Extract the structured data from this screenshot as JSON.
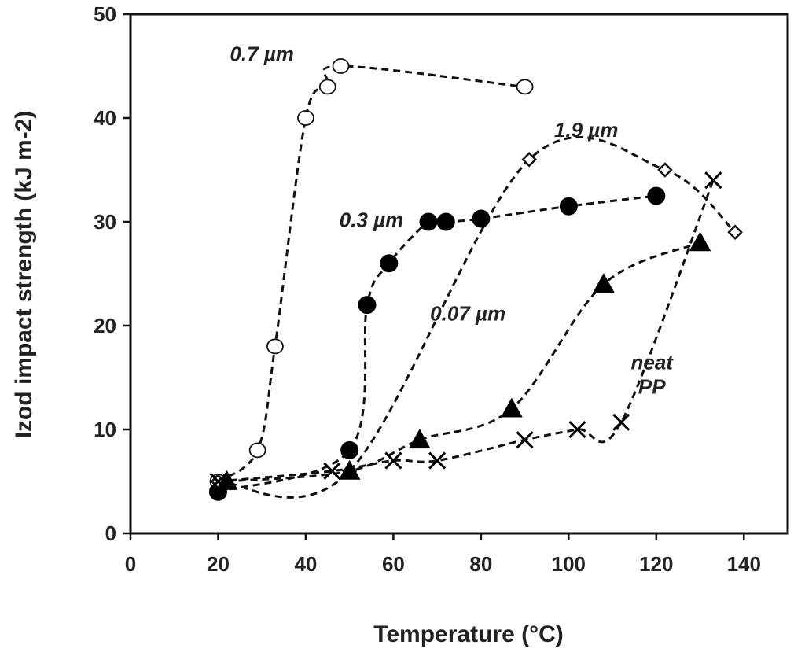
{
  "chart_data": {
    "type": "scatter",
    "title": "",
    "xlabel": "Temperature (°C)",
    "ylabel": "Izod impact strength (kJ m-2)",
    "xlim": [
      0,
      150
    ],
    "ylim": [
      0,
      50
    ],
    "xticks": [
      0,
      20,
      40,
      60,
      80,
      100,
      120,
      140
    ],
    "yticks": [
      0,
      10,
      20,
      30,
      40,
      50
    ],
    "grid": false,
    "series": [
      {
        "name": "0.7 µm",
        "marker": "open-circle",
        "label_pos": [
          30,
          45.5
        ],
        "points": [
          [
            20,
            5
          ],
          [
            29,
            8
          ],
          [
            33,
            18
          ],
          [
            40,
            40
          ],
          [
            45,
            43
          ],
          [
            48,
            45
          ],
          [
            90,
            43
          ]
        ]
      },
      {
        "name": "0.3 µm",
        "marker": "filled-circle",
        "label_pos": [
          55,
          29.5
        ],
        "points": [
          [
            20,
            4
          ],
          [
            50,
            8
          ],
          [
            54,
            22
          ],
          [
            59,
            26
          ],
          [
            68,
            30
          ],
          [
            72,
            30
          ],
          [
            80,
            30.3
          ],
          [
            100,
            31.5
          ],
          [
            120,
            32.5
          ]
        ]
      },
      {
        "name": "1.9 µm",
        "marker": "open-diamond",
        "label_pos": [
          104,
          38.2
        ],
        "points": [
          [
            20,
            5
          ],
          [
            50,
            6
          ],
          [
            91,
            36
          ],
          [
            122,
            35
          ],
          [
            138,
            29
          ]
        ]
      },
      {
        "name": "0.07 µm",
        "marker": "filled-triangle",
        "label_pos": [
          77,
          20.5
        ],
        "points": [
          [
            22,
            5
          ],
          [
            50,
            6
          ],
          [
            66,
            9
          ],
          [
            87,
            12
          ],
          [
            108,
            24
          ],
          [
            130,
            28
          ]
        ]
      },
      {
        "name": "neat PP",
        "label_lines": [
          "neat",
          "PP"
        ],
        "marker": "x",
        "label_pos": [
          119,
          15.8
        ],
        "points": [
          [
            20,
            5
          ],
          [
            46,
            6
          ],
          [
            60,
            7
          ],
          [
            70,
            7
          ],
          [
            90,
            9
          ],
          [
            102,
            10
          ],
          [
            112,
            10.7
          ],
          [
            133,
            34
          ]
        ]
      }
    ]
  }
}
